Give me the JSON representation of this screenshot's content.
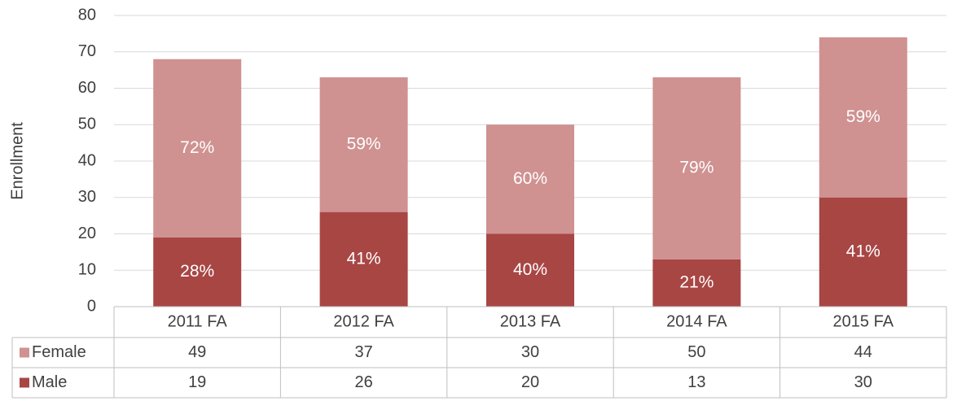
{
  "chart_data": {
    "type": "bar",
    "stacked": true,
    "y_label": "Enrollment",
    "categories": [
      "2011 FA",
      "2012 FA",
      "2013 FA",
      "2014 FA",
      "2015 FA"
    ],
    "series": [
      {
        "name": "Male",
        "color": "#a84644",
        "values": [
          19,
          26,
          20,
          13,
          30
        ],
        "percent_labels": [
          "28%",
          "41%",
          "40%",
          "21%",
          "41%"
        ]
      },
      {
        "name": "Female",
        "color": "#d09191",
        "values": [
          49,
          37,
          30,
          50,
          44
        ],
        "percent_labels": [
          "72%",
          "59%",
          "60%",
          "79%",
          "59%"
        ]
      }
    ],
    "ylim": [
      0,
      80
    ],
    "yticks": [
      0,
      10,
      20,
      30,
      40,
      50,
      60,
      70,
      80
    ],
    "grid": true,
    "data_table": true
  }
}
